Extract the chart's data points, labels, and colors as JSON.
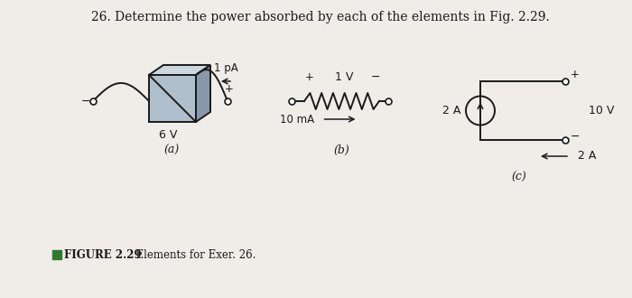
{
  "title": "26. Determine the power absorbed by each of the elements in Fig. 2.29.",
  "figure_label": "FIGURE 2.29",
  "figure_caption": "  Elements for Exer. 26.",
  "subplot_a_label": "(a)",
  "subplot_b_label": "(b)",
  "subplot_c_label": "(c)",
  "bg_color": "#f0ece8",
  "box_front": "#b0bfcc",
  "box_top": "#ccd8e0",
  "box_right": "#8898a8",
  "line_color": "#1a1a1a",
  "text_color": "#1a1a1a",
  "green_color": "#2d7a2d"
}
